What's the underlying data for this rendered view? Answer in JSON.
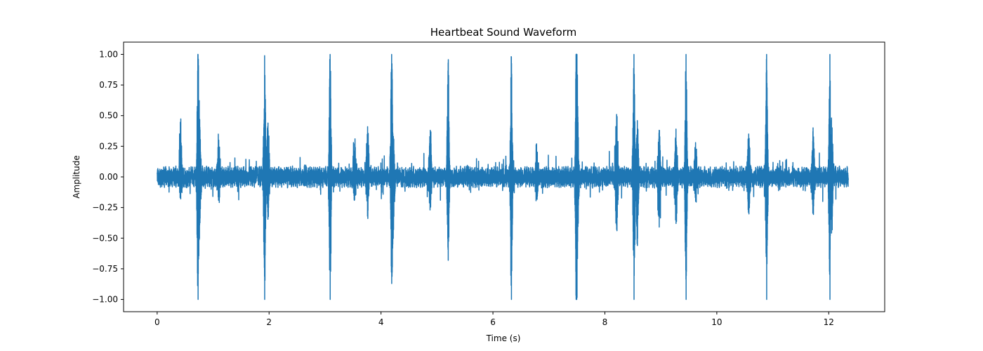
{
  "chart_data": {
    "type": "line",
    "title": "Heartbeat Sound Waveform",
    "xlabel": "Time (s)",
    "ylabel": "Amplitude",
    "xlim": [
      -0.6,
      13.0
    ],
    "ylim": [
      -1.1,
      1.1
    ],
    "x_ticks": [
      0,
      2,
      4,
      6,
      8,
      10,
      12
    ],
    "y_ticks": [
      -1.0,
      -0.75,
      -0.5,
      -0.25,
      0.0,
      0.25,
      0.5,
      0.75,
      1.0
    ],
    "x_tick_labels": [
      "0",
      "2",
      "4",
      "6",
      "8",
      "10",
      "12"
    ],
    "y_tick_labels": [
      "−1.00",
      "−0.75",
      "−0.50",
      "−0.25",
      "0.00",
      "0.25",
      "0.50",
      "0.75",
      "1.00"
    ],
    "duration": 12.35,
    "grid": false,
    "legend": "none",
    "series": [
      {
        "color": "#1f77b4",
        "beats": [
          {
            "t": 0.73,
            "max": 1.0,
            "min": -1.0
          },
          {
            "t": 1.92,
            "max": 0.99,
            "min": -1.0
          },
          {
            "t": 3.09,
            "max": 1.0,
            "min": -1.0
          },
          {
            "t": 4.19,
            "max": 1.0,
            "min": -0.87
          },
          {
            "t": 5.2,
            "max": 0.93,
            "min": -0.68
          },
          {
            "t": 6.33,
            "max": 0.98,
            "min": -1.0
          },
          {
            "t": 7.49,
            "max": 1.0,
            "min": -1.0
          },
          {
            "t": 8.52,
            "max": 1.0,
            "min": -1.0
          },
          {
            "t": 9.45,
            "max": 1.0,
            "min": -1.0
          },
          {
            "t": 10.89,
            "max": 1.0,
            "min": -1.0
          },
          {
            "t": 12.02,
            "max": 1.0,
            "min": -1.0
          }
        ],
        "secondary_peaks": [
          {
            "t": 0.42,
            "max": 0.44,
            "min": -0.18
          },
          {
            "t": 0.76,
            "max": 0.39,
            "min": -0.29
          },
          {
            "t": 1.1,
            "max": 0.3,
            "min": -0.17
          },
          {
            "t": 1.98,
            "max": 0.44,
            "min": -0.3
          },
          {
            "t": 3.53,
            "max": 0.27,
            "min": -0.15
          },
          {
            "t": 3.76,
            "max": 0.41,
            "min": -0.28
          },
          {
            "t": 4.22,
            "max": 0.26,
            "min": -0.35
          },
          {
            "t": 4.88,
            "max": 0.38,
            "min": -0.25
          },
          {
            "t": 6.78,
            "max": 0.27,
            "min": -0.18
          },
          {
            "t": 7.51,
            "max": 0.45,
            "min": -0.4
          },
          {
            "t": 8.21,
            "max": 0.51,
            "min": -0.43
          },
          {
            "t": 8.58,
            "max": 0.46,
            "min": -0.56
          },
          {
            "t": 8.97,
            "max": 0.38,
            "min": -0.41
          },
          {
            "t": 9.27,
            "max": 0.39,
            "min": -0.38
          },
          {
            "t": 9.62,
            "max": 0.28,
            "min": -0.2
          },
          {
            "t": 10.57,
            "max": 0.35,
            "min": -0.28
          },
          {
            "t": 11.72,
            "max": 0.4,
            "min": -0.26
          },
          {
            "t": 12.05,
            "max": 0.59,
            "min": -0.53
          }
        ]
      }
    ]
  }
}
